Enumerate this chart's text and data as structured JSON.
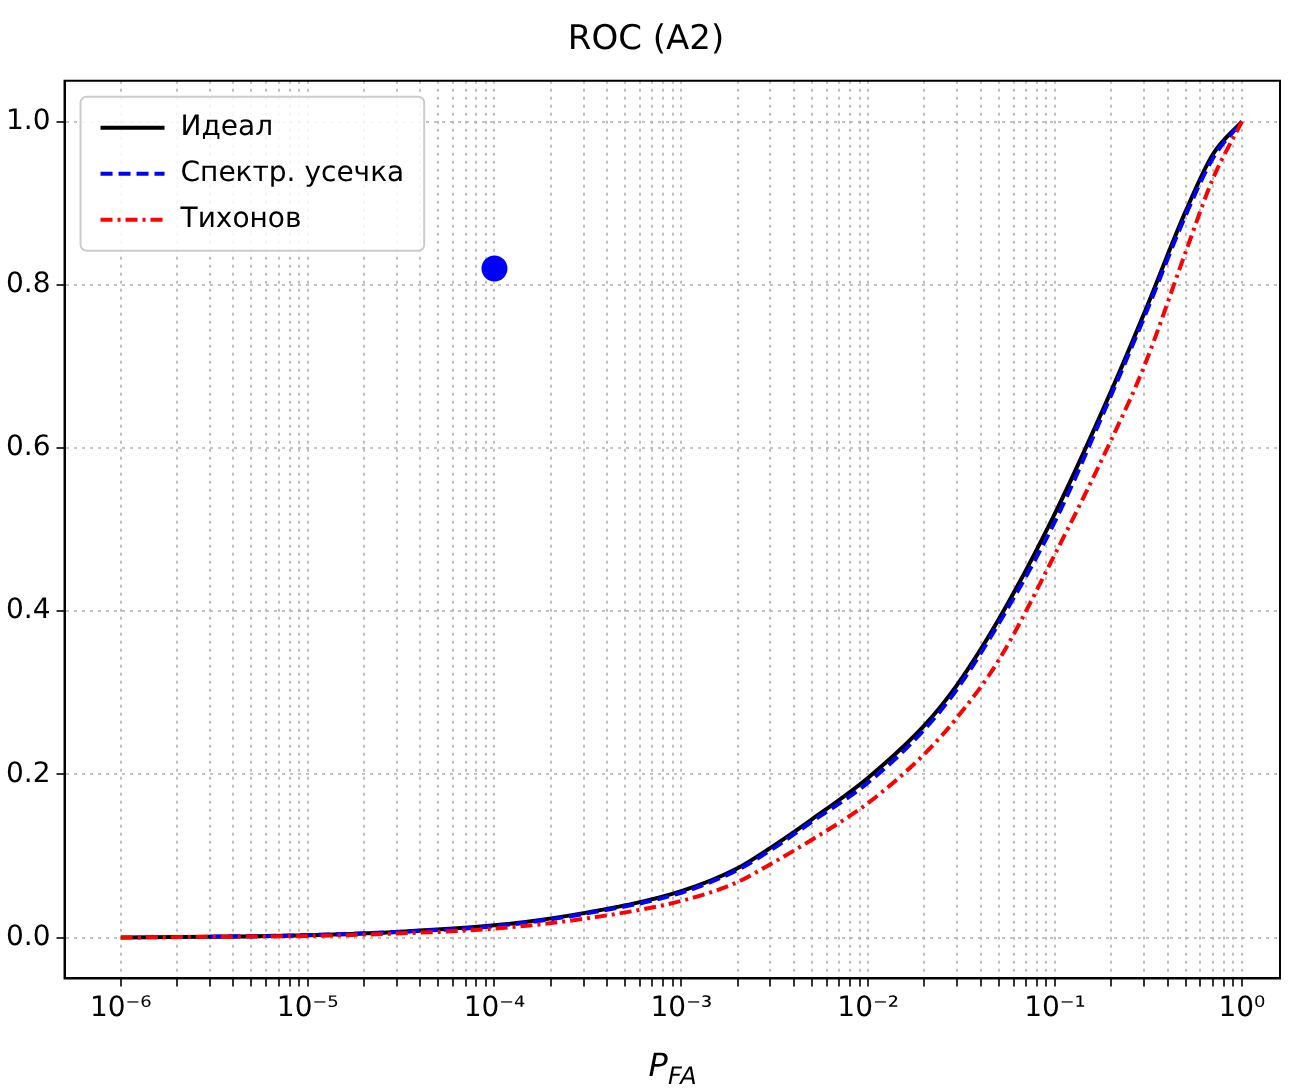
{
  "chart_data": {
    "type": "line",
    "title": "ROC (A2)",
    "xlabel": "P$_{FA}$",
    "log": "x",
    "grid": true,
    "legend": "top left",
    "marker": "none",
    "xlim": [
      5e-07,
      1.6
    ],
    "ylim": [
      -0.05,
      1.05
    ],
    "xticks": [
      {
        "value": 1e-06,
        "label": "10⁻⁶"
      },
      {
        "value": 2e-06,
        "label": null
      },
      {
        "value": 3e-06,
        "label": null
      },
      {
        "value": 4e-06,
        "label": null
      },
      {
        "value": 5e-06,
        "label": null
      },
      {
        "value": 6e-06,
        "label": null
      },
      {
        "value": 7e-06,
        "label": null
      },
      {
        "value": 8e-06,
        "label": null
      },
      {
        "value": 9e-06,
        "label": null
      },
      {
        "value": 1e-05,
        "label": "10⁻⁵"
      },
      {
        "value": 2e-05,
        "label": null
      },
      {
        "value": 3e-05,
        "label": null
      },
      {
        "value": 4e-05,
        "label": null
      },
      {
        "value": 5e-05,
        "label": null
      },
      {
        "value": 6e-05,
        "label": null
      },
      {
        "value": 7e-05,
        "label": null
      },
      {
        "value": 8e-05,
        "label": null
      },
      {
        "value": 9e-05,
        "label": null
      },
      {
        "value": 0.0001,
        "label": "10⁻⁴"
      },
      {
        "value": 0.0002,
        "label": null
      },
      {
        "value": 0.0003,
        "label": null
      },
      {
        "value": 0.0004,
        "label": null
      },
      {
        "value": 0.0005,
        "label": null
      },
      {
        "value": 0.0006,
        "label": null
      },
      {
        "value": 0.0007,
        "label": null
      },
      {
        "value": 0.0008,
        "label": null
      },
      {
        "value": 0.0009,
        "label": null
      },
      {
        "value": 0.001,
        "label": "10⁻³"
      },
      {
        "value": 0.002,
        "label": null
      },
      {
        "value": 0.003,
        "label": null
      },
      {
        "value": 0.004,
        "label": null
      },
      {
        "value": 0.005,
        "label": null
      },
      {
        "value": 0.006,
        "label": null
      },
      {
        "value": 0.007,
        "label": null
      },
      {
        "value": 0.008,
        "label": null
      },
      {
        "value": 0.009,
        "label": null
      },
      {
        "value": 0.01,
        "label": "10⁻²"
      },
      {
        "value": 0.02,
        "label": null
      },
      {
        "value": 0.03,
        "label": null
      },
      {
        "value": 0.04,
        "label": null
      },
      {
        "value": 0.05,
        "label": null
      },
      {
        "value": 0.06,
        "label": null
      },
      {
        "value": 0.07,
        "label": null
      },
      {
        "value": 0.08,
        "label": null
      },
      {
        "value": 0.09,
        "label": null
      },
      {
        "value": 0.1,
        "label": "10⁻¹"
      },
      {
        "value": 0.2,
        "label": null
      },
      {
        "value": 0.3,
        "label": null
      },
      {
        "value": 0.4,
        "label": null
      },
      {
        "value": 0.5,
        "label": null
      },
      {
        "value": 0.6,
        "label": null
      },
      {
        "value": 0.7,
        "label": null
      },
      {
        "value": 0.8,
        "label": null
      },
      {
        "value": 0.9,
        "label": null
      },
      {
        "value": 1,
        "label": "10⁰"
      }
    ],
    "yticks": [
      {
        "value": 0,
        "label": "0.0"
      },
      {
        "value": 0.2,
        "label": "0.2"
      },
      {
        "value": 0.4,
        "label": "0.4"
      },
      {
        "value": 0.6,
        "label": "0.6"
      },
      {
        "value": 0.8,
        "label": "0.8"
      },
      {
        "value": 1,
        "label": "1.0"
      }
    ],
    "x": [
      1e-06,
      3e-06,
      1e-05,
      3e-05,
      0.0001,
      0.0003,
      0.001,
      0.002,
      0.003,
      0.005,
      0.01,
      0.02,
      0.03,
      0.05,
      0.1,
      0.2,
      0.3,
      0.5,
      0.7,
      1
    ],
    "series": [
      {
        "name": "Идеал",
        "color": "#000000",
        "line_style": "solid",
        "values": [
          0,
          0.001,
          0.003,
          0.007,
          0.015,
          0.03,
          0.057,
          0.085,
          0.11,
          0.145,
          0.196,
          0.26,
          0.31,
          0.39,
          0.52,
          0.67,
          0.765,
          0.89,
          0.96,
          1
        ]
      },
      {
        "name": "Спектр. усечка",
        "color": "#0000ff",
        "line_style": "dashed",
        "values": [
          null,
          0.001,
          0.003,
          0.007,
          0.014,
          0.029,
          0.055,
          0.083,
          0.107,
          0.142,
          0.19,
          0.255,
          0.305,
          0.385,
          0.51,
          0.665,
          0.76,
          0.885,
          0.955,
          1
        ]
      },
      {
        "name": "Тихонов",
        "color": "#ff0000",
        "line_style": "dashdot",
        "values": [
          0,
          0.001,
          0.002,
          0.005,
          0.011,
          0.023,
          0.045,
          0.068,
          0.09,
          0.12,
          0.165,
          0.225,
          0.27,
          0.34,
          0.47,
          0.61,
          0.7,
          0.84,
          0.93,
          1
        ]
      },
      {
        "type": "scatter",
        "color": "#0000ff",
        "marker": "circle",
        "x": [
          0.0001
        ],
        "values": [
          0.82
        ]
      }
    ]
  }
}
